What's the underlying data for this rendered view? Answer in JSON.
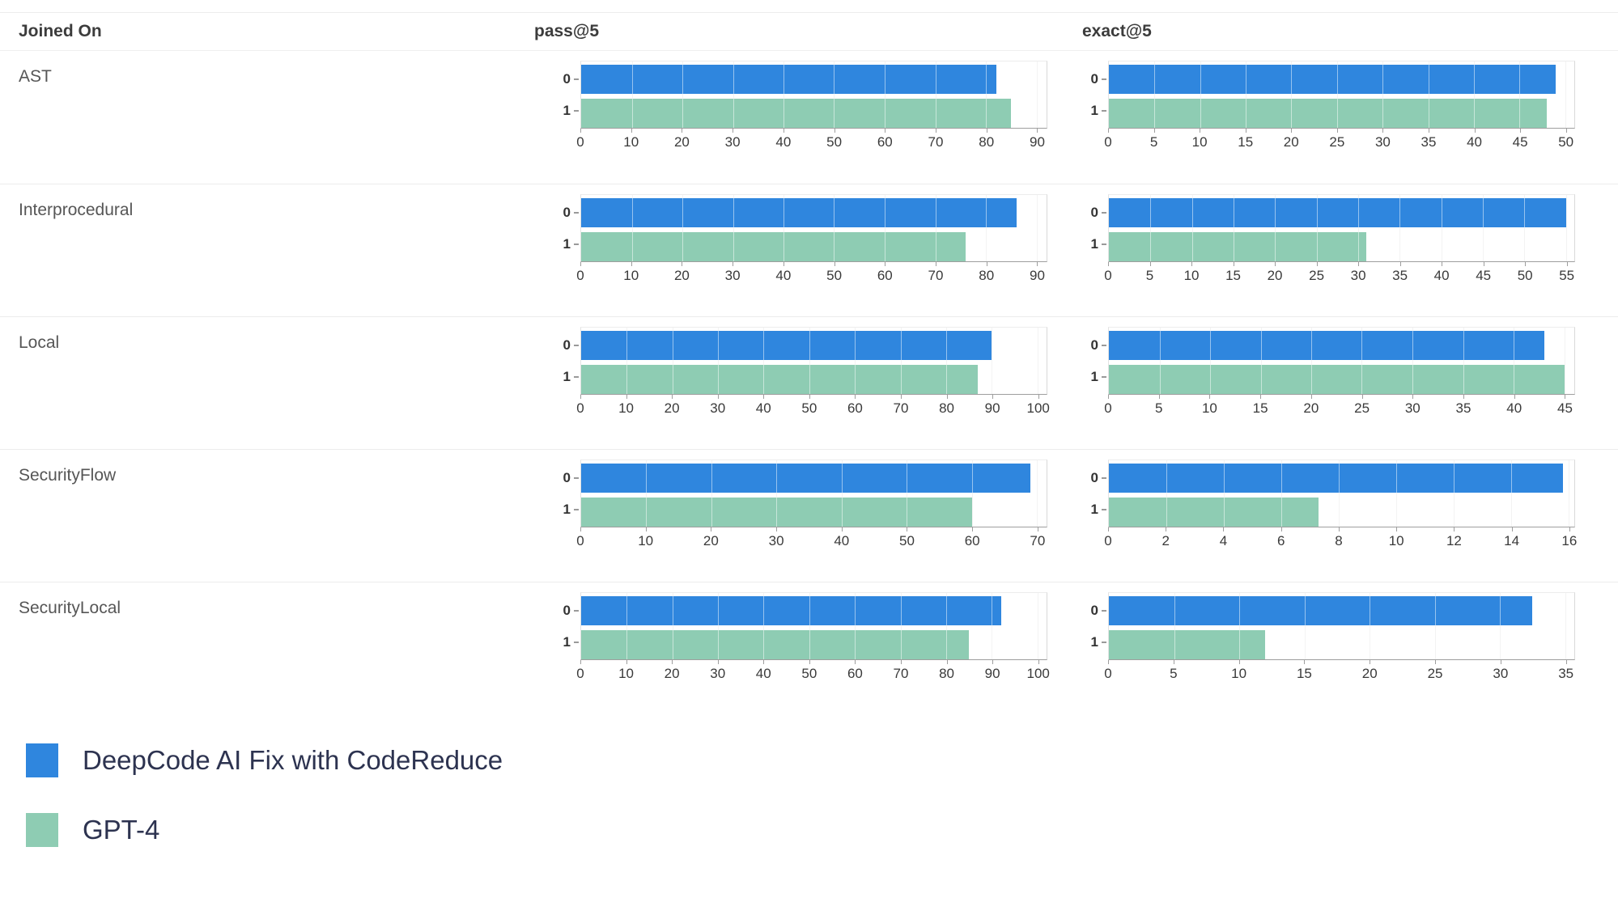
{
  "chart_data": {
    "type": "bar",
    "orientation": "horizontal",
    "grid": true,
    "header": {
      "col1": "Joined On",
      "col2": "pass@5",
      "col3": "exact@5"
    },
    "categories": [
      "0",
      "1"
    ],
    "series_legend": [
      {
        "name": "DeepCode AI Fix with CodeReduce",
        "color": "#2f86de"
      },
      {
        "name": "GPT-4",
        "color": "#8eccb3"
      }
    ],
    "rows": [
      {
        "label": "AST",
        "pass_at_5": {
          "ticks": [
            0,
            10,
            20,
            30,
            40,
            50,
            60,
            70,
            80,
            90
          ],
          "xmax": 92,
          "values": [
            82,
            85
          ]
        },
        "exact_at_5": {
          "ticks": [
            0,
            5,
            10,
            15,
            20,
            25,
            30,
            35,
            40,
            45,
            50
          ],
          "xmax": 51,
          "values": [
            49,
            48
          ]
        }
      },
      {
        "label": "Interprocedural",
        "pass_at_5": {
          "ticks": [
            0,
            10,
            20,
            30,
            40,
            50,
            60,
            70,
            80,
            90
          ],
          "xmax": 92,
          "values": [
            86,
            76
          ]
        },
        "exact_at_5": {
          "ticks": [
            0,
            5,
            10,
            15,
            20,
            25,
            30,
            35,
            40,
            45,
            50,
            55
          ],
          "xmax": 56,
          "values": [
            55,
            31
          ]
        }
      },
      {
        "label": "Local",
        "pass_at_5": {
          "ticks": [
            0,
            10,
            20,
            30,
            40,
            50,
            60,
            70,
            80,
            90,
            100
          ],
          "xmax": 102,
          "values": [
            90,
            87
          ]
        },
        "exact_at_5": {
          "ticks": [
            0,
            5,
            10,
            15,
            20,
            25,
            30,
            35,
            40,
            45
          ],
          "xmax": 46,
          "values": [
            43,
            45
          ]
        }
      },
      {
        "label": "SecurityFlow",
        "pass_at_5": {
          "ticks": [
            0,
            10,
            20,
            30,
            40,
            50,
            60,
            70
          ],
          "xmax": 71.5,
          "values": [
            69,
            60
          ]
        },
        "exact_at_5": {
          "ticks": [
            0,
            2,
            4,
            6,
            8,
            10,
            12,
            14,
            16
          ],
          "xmax": 16.2,
          "values": [
            15.8,
            7.3
          ]
        }
      },
      {
        "label": "SecurityLocal",
        "pass_at_5": {
          "ticks": [
            0,
            10,
            20,
            30,
            40,
            50,
            60,
            70,
            80,
            90,
            100
          ],
          "xmax": 102,
          "values": [
            92,
            85
          ]
        },
        "exact_at_5": {
          "ticks": [
            0,
            5,
            10,
            15,
            20,
            25,
            30,
            35
          ],
          "xmax": 35.7,
          "values": [
            32.5,
            12
          ]
        }
      }
    ]
  }
}
